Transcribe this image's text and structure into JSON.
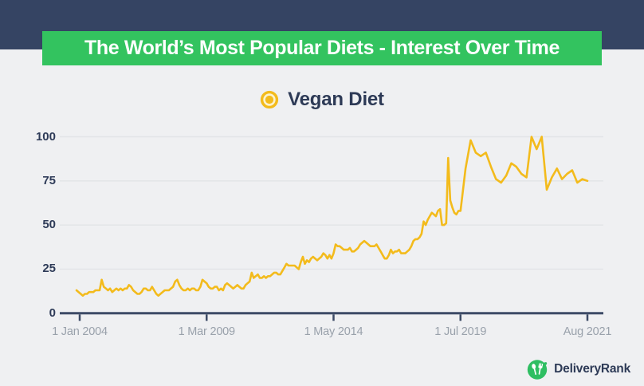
{
  "header": {
    "title": "The World’s Most Popular Diets - Interest Over Time",
    "bar_color": "#354463",
    "banner_color": "#33c35f",
    "banner_text_color": "#ffffff"
  },
  "legend": {
    "label": "Vegan Diet",
    "marker_color": "#f3bb1c"
  },
  "chart_data": {
    "type": "line",
    "title": "The World’s Most Popular Diets - Interest Over Time",
    "series_name": "Vegan Diet",
    "line_color": "#f3bb1c",
    "grid": "horizontal",
    "legend_position": "top-center",
    "ylim": [
      0,
      100
    ],
    "y_ticks": [
      0,
      25,
      50,
      75,
      100
    ],
    "x_tick_labels": [
      "1 Jan 2004",
      "1 Mar 2009",
      "1 May 2014",
      "1 Jul 2019",
      "Aug 2021"
    ],
    "x_start_month": "2004-01",
    "x_end_month": "2021-08",
    "interval": "monthly",
    "values": [
      13,
      12,
      11,
      10,
      11,
      11,
      12,
      12,
      12,
      13,
      13,
      13,
      19,
      15,
      14,
      13,
      14,
      12,
      13,
      14,
      13,
      14,
      13,
      14,
      14,
      16,
      15,
      13,
      12,
      11,
      11,
      12,
      14,
      14,
      13,
      13,
      15,
      13,
      11,
      10,
      11,
      12,
      13,
      13,
      13,
      14,
      15,
      18,
      19,
      16,
      14,
      13,
      13,
      14,
      13,
      14,
      14,
      13,
      13,
      15,
      19,
      18,
      17,
      15,
      14,
      14,
      15,
      15,
      13,
      14,
      13,
      16,
      17,
      16,
      15,
      14,
      15,
      16,
      15,
      14,
      14,
      16,
      17,
      18,
      23,
      20,
      21,
      22,
      20,
      20,
      21,
      20,
      21,
      21,
      22,
      23,
      23,
      22,
      22,
      24,
      26,
      28,
      27,
      27,
      27,
      27,
      26,
      25,
      29,
      32,
      28,
      30,
      29,
      31,
      32,
      31,
      30,
      31,
      32,
      34,
      33,
      31,
      33,
      31,
      34,
      39,
      38,
      38,
      37,
      36,
      36,
      36,
      37,
      35,
      35,
      36,
      37,
      39,
      40,
      41,
      40,
      39,
      38,
      38,
      38,
      39,
      37,
      35,
      33,
      31,
      31,
      33,
      36,
      34,
      35,
      35,
      36,
      34,
      34,
      34,
      35,
      36,
      38,
      41,
      42,
      42,
      43,
      45,
      52,
      50,
      53,
      55,
      57,
      56,
      55,
      58,
      59,
      50,
      50,
      51,
      88,
      64,
      60,
      57,
      56,
      58,
      58,
      82,
      98,
      91,
      89,
      91,
      83,
      76,
      74,
      78,
      85,
      83,
      79,
      77,
      100,
      93,
      100,
      70,
      77,
      82,
      76,
      79,
      81,
      74,
      76,
      75
    ]
  },
  "footer": {
    "brand": "DeliveryRank",
    "logo_color": "#2ebe62"
  }
}
